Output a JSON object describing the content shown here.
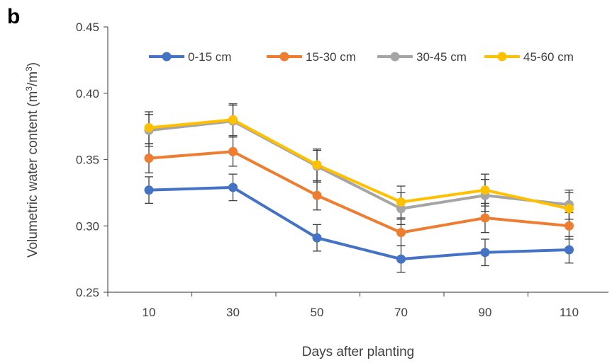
{
  "panel_label": "b",
  "chart_data": {
    "type": "line",
    "x": [
      10,
      30,
      50,
      70,
      90,
      110
    ],
    "xlabel": "Days after planting",
    "ylabel_main": "Volumetric water content (m",
    "ylabel_sup1": "3",
    "ylabel_mid": "/m",
    "ylabel_sup2": "3",
    "ylabel_end": ")",
    "ylim": [
      0.25,
      0.45
    ],
    "yticks": [
      "0.25",
      "0.30",
      "0.35",
      "0.40",
      "0.45"
    ],
    "ytick_values": [
      0.25,
      0.3,
      0.35,
      0.4,
      0.45
    ],
    "xticks": [
      "10",
      "30",
      "50",
      "70",
      "90",
      "110"
    ],
    "grid": false,
    "legend_position": "top",
    "series": [
      {
        "name": "0-15 cm",
        "color": "#4472C4",
        "values": [
          0.327,
          0.329,
          0.291,
          0.275,
          0.28,
          0.282
        ],
        "errors": [
          0.01,
          0.01,
          0.01,
          0.01,
          0.01,
          0.01
        ]
      },
      {
        "name": "15-30 cm",
        "color": "#ED7D31",
        "values": [
          0.351,
          0.356,
          0.323,
          0.295,
          0.306,
          0.3
        ],
        "errors": [
          0.011,
          0.011,
          0.011,
          0.01,
          0.011,
          0.01
        ]
      },
      {
        "name": "30-45 cm",
        "color": "#A5A5A5",
        "values": [
          0.372,
          0.379,
          0.345,
          0.313,
          0.323,
          0.316
        ],
        "errors": [
          0.012,
          0.012,
          0.012,
          0.012,
          0.012,
          0.011
        ]
      },
      {
        "name": "45-60 cm",
        "color": "#FFC000",
        "values": [
          0.374,
          0.38,
          0.346,
          0.318,
          0.327,
          0.313
        ],
        "errors": [
          0.012,
          0.012,
          0.012,
          0.012,
          0.012,
          0.012
        ]
      }
    ]
  }
}
